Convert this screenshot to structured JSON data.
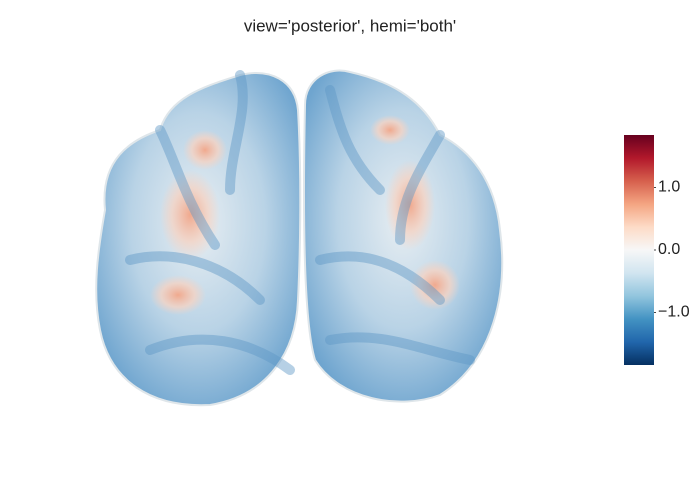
{
  "chart_data": {
    "type": "surface",
    "title": "view='posterior', hemi='both'",
    "colorscale": [
      "#053061",
      "#2166ac",
      "#4393c3",
      "#92c5de",
      "#d1e5f0",
      "#f7f7f7",
      "#fddbc7",
      "#f4a582",
      "#d6604d",
      "#b2182b",
      "#67001f"
    ],
    "clim": [
      -1.84,
      1.84
    ],
    "cticks": [
      {
        "value": 1,
        "label": "1.0"
      },
      {
        "value": 0,
        "label": "0.0"
      },
      {
        "value": -1,
        "label": "−1.0"
      }
    ]
  }
}
